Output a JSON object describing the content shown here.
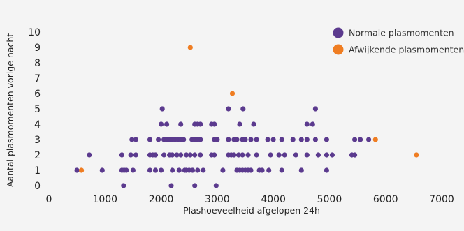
{
  "chart_data": {
    "type": "scatter",
    "title": "",
    "xlabel": "Plashoeveelheid afgelopen 24h",
    "ylabel": "Aantal plasmomenten vorige nacht",
    "xlim": [
      0,
      7000
    ],
    "ylim": [
      0,
      10
    ],
    "x_ticks": [
      "0",
      "1000",
      "2000",
      "3000",
      "4000",
      "5000",
      "6000",
      "7000"
    ],
    "y_ticks": [
      "0",
      "1",
      "2",
      "3",
      "4",
      "5",
      "6",
      "7",
      "8",
      "9",
      "10"
    ],
    "grid": false,
    "legend_position": "top-right",
    "colors": {
      "normal": "#5b3a8e",
      "abnormal": "#ef7d22"
    },
    "series": [
      {
        "name": "Normale plasmomenten",
        "points": [
          [
            1330,
            0
          ],
          [
            2180,
            0
          ],
          [
            2600,
            0
          ],
          [
            2980,
            0
          ],
          [
            500,
            1
          ],
          [
            950,
            1
          ],
          [
            1300,
            1
          ],
          [
            1340,
            1
          ],
          [
            1380,
            1
          ],
          [
            1500,
            1
          ],
          [
            1800,
            1
          ],
          [
            1900,
            1
          ],
          [
            2000,
            1
          ],
          [
            2200,
            1
          ],
          [
            2320,
            1
          ],
          [
            2420,
            1
          ],
          [
            2450,
            1
          ],
          [
            2500,
            1
          ],
          [
            2560,
            1
          ],
          [
            2650,
            1
          ],
          [
            2750,
            1
          ],
          [
            3100,
            1
          ],
          [
            3350,
            1
          ],
          [
            3400,
            1
          ],
          [
            3450,
            1
          ],
          [
            3500,
            1
          ],
          [
            3550,
            1
          ],
          [
            3600,
            1
          ],
          [
            3750,
            1
          ],
          [
            3800,
            1
          ],
          [
            3920,
            1
          ],
          [
            4150,
            1
          ],
          [
            4500,
            1
          ],
          [
            4950,
            1
          ],
          [
            720,
            2
          ],
          [
            1300,
            2
          ],
          [
            1460,
            2
          ],
          [
            1550,
            2
          ],
          [
            1800,
            2
          ],
          [
            1850,
            2
          ],
          [
            1900,
            2
          ],
          [
            2050,
            2
          ],
          [
            2150,
            2
          ],
          [
            2200,
            2
          ],
          [
            2280,
            2
          ],
          [
            2350,
            2
          ],
          [
            2450,
            2
          ],
          [
            2520,
            2
          ],
          [
            2600,
            2
          ],
          [
            2700,
            2
          ],
          [
            2900,
            2
          ],
          [
            2950,
            2
          ],
          [
            3200,
            2
          ],
          [
            3250,
            2
          ],
          [
            3300,
            2
          ],
          [
            3380,
            2
          ],
          [
            3450,
            2
          ],
          [
            3550,
            2
          ],
          [
            3700,
            2
          ],
          [
            3950,
            2
          ],
          [
            4100,
            2
          ],
          [
            4200,
            2
          ],
          [
            4400,
            2
          ],
          [
            4600,
            2
          ],
          [
            4800,
            2
          ],
          [
            4950,
            2
          ],
          [
            5050,
            2
          ],
          [
            5400,
            2
          ],
          [
            5450,
            2
          ],
          [
            1480,
            3
          ],
          [
            1550,
            3
          ],
          [
            1800,
            3
          ],
          [
            1950,
            3
          ],
          [
            2050,
            3
          ],
          [
            2100,
            3
          ],
          [
            2150,
            3
          ],
          [
            2200,
            3
          ],
          [
            2250,
            3
          ],
          [
            2300,
            3
          ],
          [
            2350,
            3
          ],
          [
            2400,
            3
          ],
          [
            2550,
            3
          ],
          [
            2600,
            3
          ],
          [
            2650,
            3
          ],
          [
            2700,
            3
          ],
          [
            2950,
            3
          ],
          [
            3000,
            3
          ],
          [
            3200,
            3
          ],
          [
            3300,
            3
          ],
          [
            3350,
            3
          ],
          [
            3450,
            3
          ],
          [
            3500,
            3
          ],
          [
            3600,
            3
          ],
          [
            3700,
            3
          ],
          [
            3900,
            3
          ],
          [
            4000,
            3
          ],
          [
            4150,
            3
          ],
          [
            4350,
            3
          ],
          [
            4500,
            3
          ],
          [
            4600,
            3
          ],
          [
            4750,
            3
          ],
          [
            4950,
            3
          ],
          [
            5450,
            3
          ],
          [
            5550,
            3
          ],
          [
            5700,
            3
          ],
          [
            2000,
            4
          ],
          [
            2100,
            4
          ],
          [
            2350,
            4
          ],
          [
            2600,
            4
          ],
          [
            2650,
            4
          ],
          [
            2700,
            4
          ],
          [
            2900,
            4
          ],
          [
            2950,
            4
          ],
          [
            3400,
            4
          ],
          [
            3650,
            4
          ],
          [
            4600,
            4
          ],
          [
            4700,
            4
          ],
          [
            2020,
            5
          ],
          [
            3200,
            5
          ],
          [
            3460,
            5
          ],
          [
            4750,
            5
          ]
        ]
      },
      {
        "name": "Afwijkende plasmomenten",
        "points": [
          [
            580,
            1
          ],
          [
            2520,
            9
          ],
          [
            3270,
            6
          ],
          [
            5820,
            3
          ],
          [
            6550,
            2
          ]
        ]
      }
    ]
  }
}
